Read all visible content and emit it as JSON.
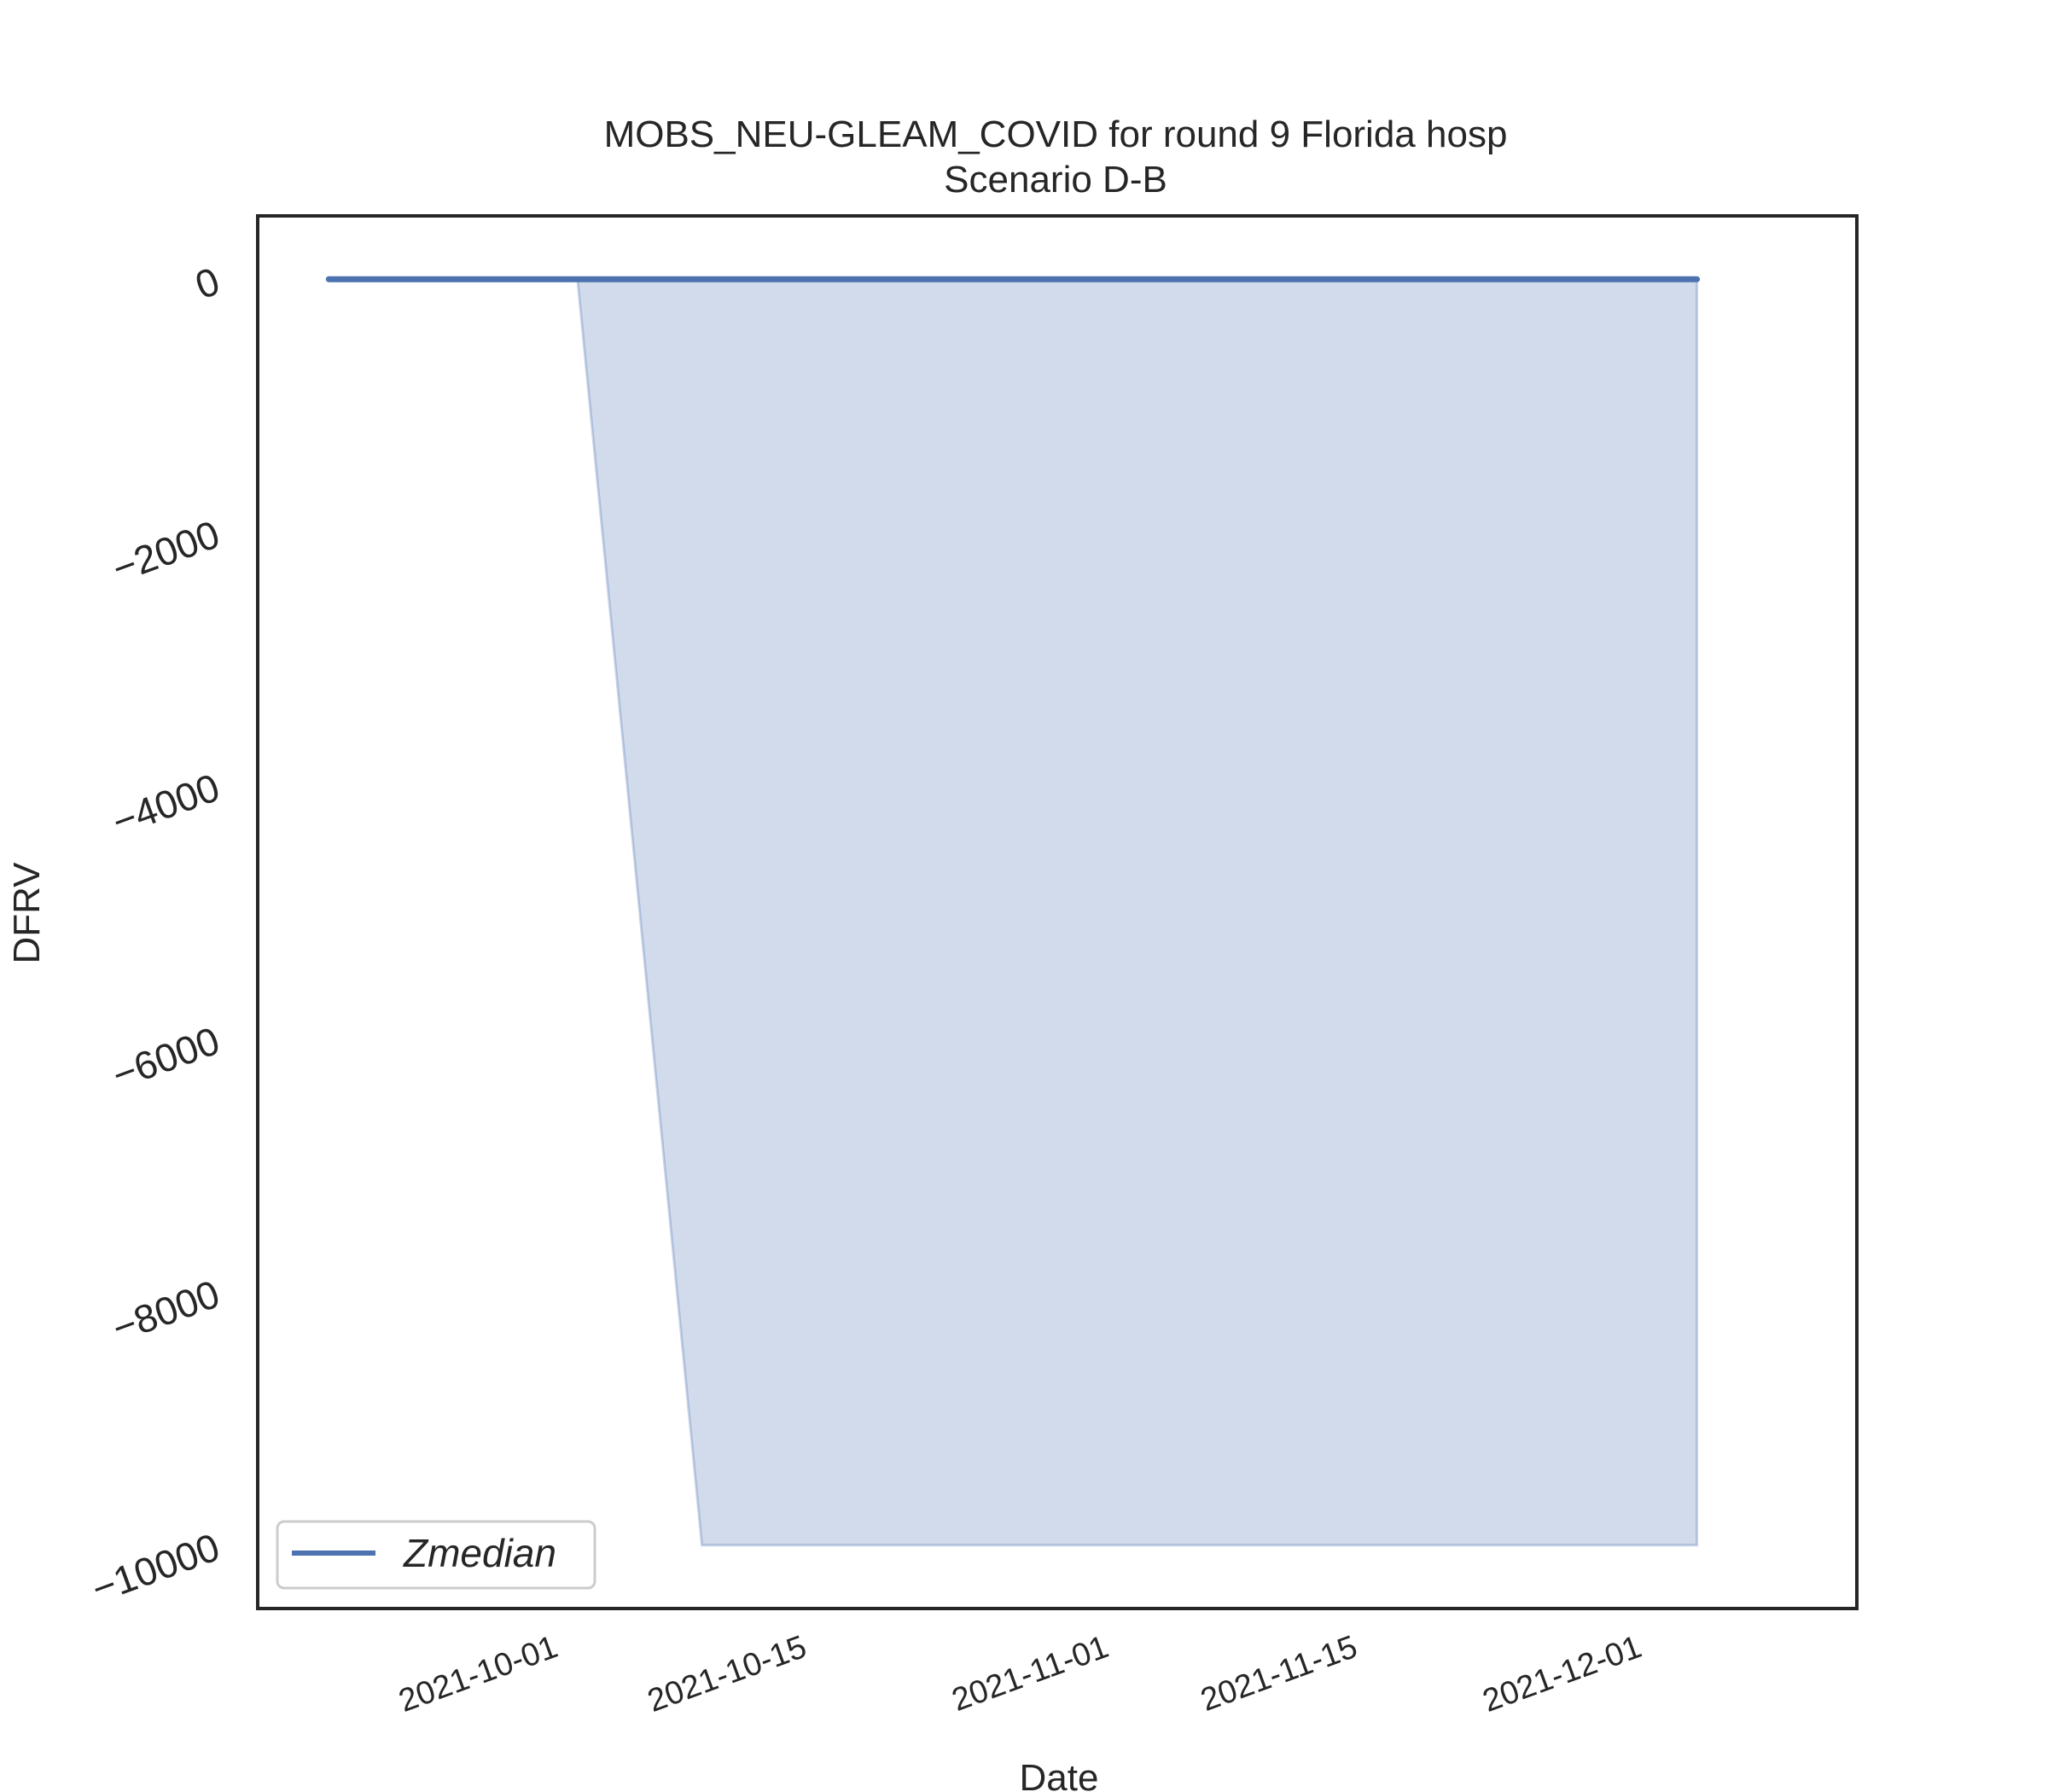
{
  "chart_data": {
    "type": "line",
    "title": "MOBS_NEU-GLEAM_COVID for round 9 Florida hosp",
    "subtitle": "Scenario D-B",
    "xlabel": "Date",
    "ylabel": "DFRV",
    "x_ticks": [
      "2021-10-01",
      "2021-10-15",
      "2021-11-01",
      "2021-11-15",
      "2021-12-01"
    ],
    "y_ticks": [
      0,
      -2000,
      -4000,
      -6000,
      -8000,
      -10000
    ],
    "y_tick_labels": [
      "0",
      "−2000",
      "−4000",
      "−6000",
      "−8000",
      "−10000"
    ],
    "xlim": [
      "2021-09-14",
      "2021-12-13"
    ],
    "ylim": [
      -10500,
      500
    ],
    "grid": false,
    "legend_position": "lower-left",
    "series": [
      {
        "name": "Zmedian",
        "color": "#4c72b0",
        "x": [
          "2021-09-18",
          "2021-10-02",
          "2021-10-09",
          "2021-10-16",
          "2021-10-23",
          "2021-10-30",
          "2021-11-06",
          "2021-11-13",
          "2021-11-20",
          "2021-11-27",
          "2021-12-04"
        ],
        "y": [
          0,
          0,
          0,
          0,
          0,
          0,
          0,
          0,
          0,
          0,
          0
        ]
      }
    ],
    "band": {
      "color": "#4c72b0",
      "opacity": 0.26,
      "x": [
        "2021-10-02",
        "2021-10-09",
        "2021-10-16",
        "2021-10-23",
        "2021-10-30",
        "2021-11-06",
        "2021-11-13",
        "2021-11-20",
        "2021-11-27",
        "2021-12-04"
      ],
      "lower": [
        0,
        -10000,
        -10000,
        -10000,
        -10000,
        -10000,
        -10000,
        -10000,
        -10000,
        -10000
      ],
      "upper": [
        0,
        0,
        0,
        0,
        0,
        0,
        0,
        0,
        0,
        0
      ]
    }
  }
}
